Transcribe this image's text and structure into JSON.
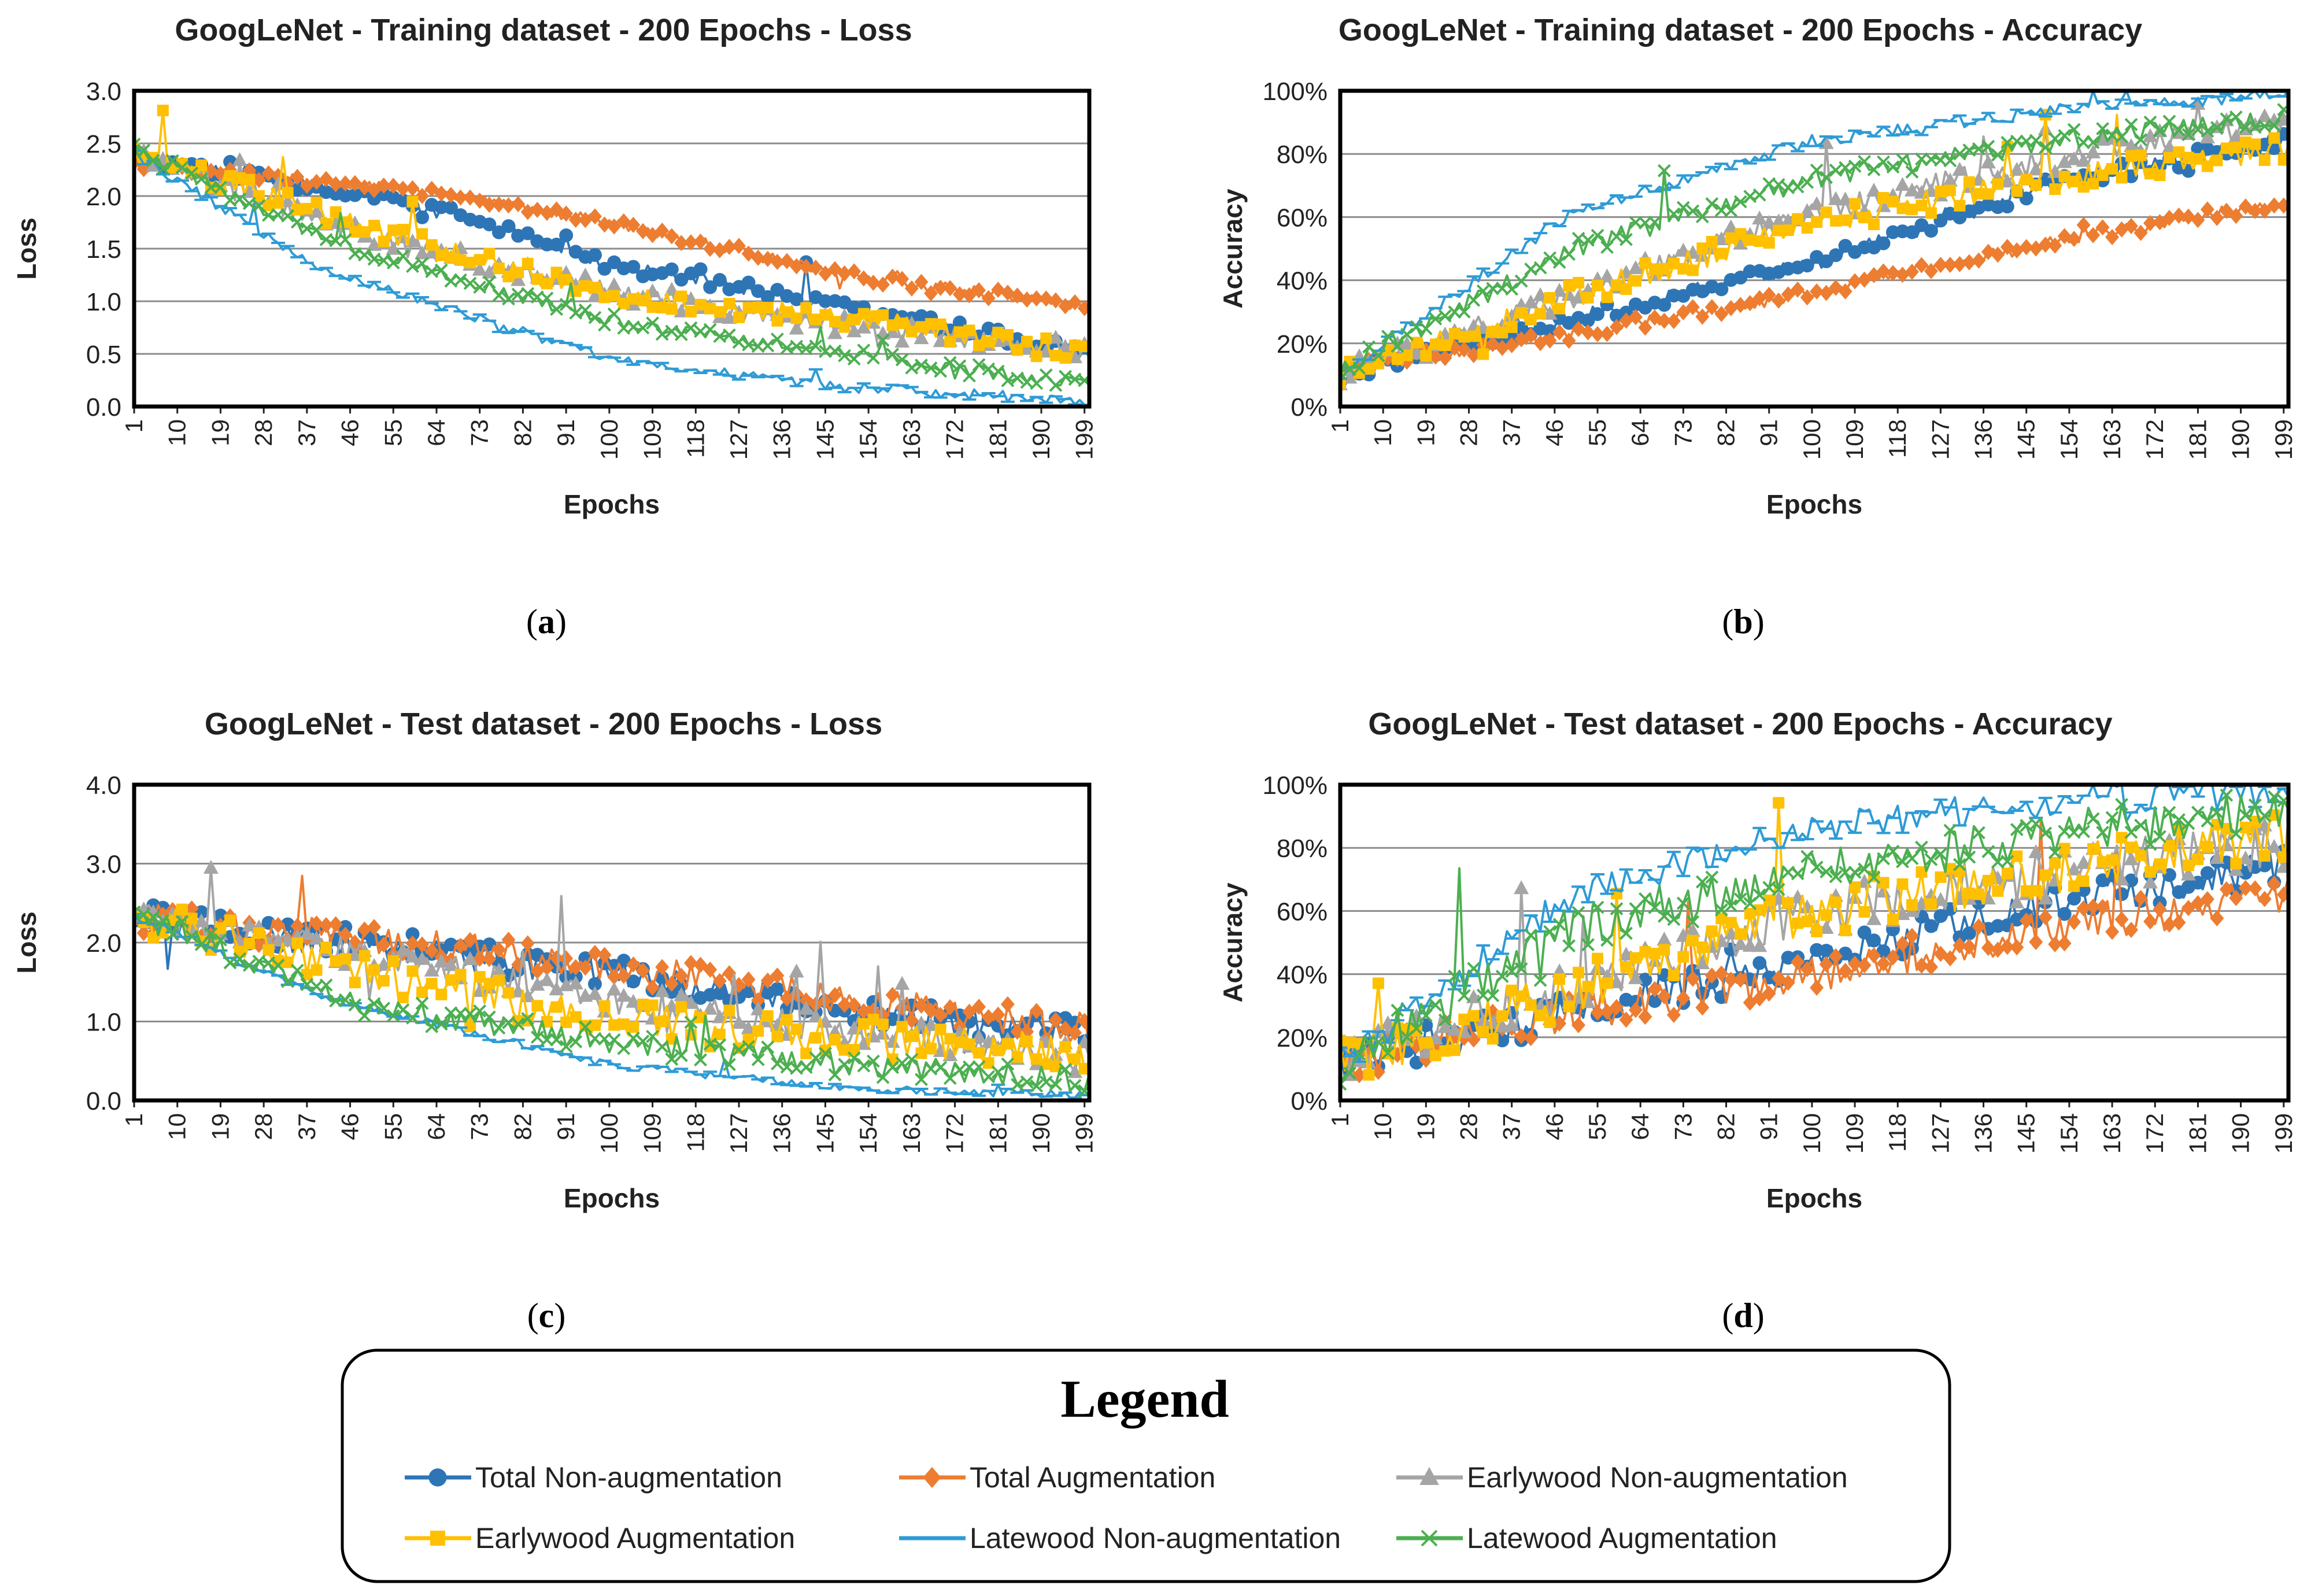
{
  "colors": {
    "total_non_aug": "#2E75B6",
    "total_aug": "#ED7D31",
    "early_non_aug": "#A5A5A5",
    "early_aug": "#FFC000",
    "late_non_aug": "#2E9BD6",
    "late_aug": "#4CAF50",
    "grid": "#8c8c8c"
  },
  "panels": {
    "a": {
      "letter": "a"
    },
    "b": {
      "letter": "b"
    },
    "c": {
      "letter": "c"
    },
    "d": {
      "letter": "d"
    }
  },
  "legend": {
    "title": "Legend",
    "items": [
      {
        "label": "Total Non-augmentation",
        "series": "total_non_aug",
        "marker": "circle"
      },
      {
        "label": "Total Augmentation",
        "series": "total_aug",
        "marker": "diamond"
      },
      {
        "label": "Earlywood Non-augmentation",
        "series": "early_non_aug",
        "marker": "triangle"
      },
      {
        "label": "Earlywood Augmentation",
        "series": "early_aug",
        "marker": "square"
      },
      {
        "label": "Latewood Non-augmentation",
        "series": "late_non_aug",
        "marker": "dash"
      },
      {
        "label": "Latewood Augmentation",
        "series": "late_aug",
        "marker": "x"
      }
    ]
  },
  "chart_data": [
    {
      "id": "a",
      "type": "line",
      "title": "GoogLeNet - Training dataset - 200 Epochs - Loss",
      "xlabel": "Epochs",
      "ylabel": "Loss",
      "xlim": [
        1,
        200
      ],
      "ylim": [
        0,
        3.0
      ],
      "yticks": [
        0.0,
        0.5,
        1.0,
        1.5,
        2.0,
        2.5,
        3.0
      ],
      "ytick_labels": [
        "0.0",
        "0.5",
        "1.0",
        "1.5",
        "2.0",
        "2.5",
        "3.0"
      ],
      "xticks": [
        1,
        10,
        19,
        28,
        37,
        46,
        55,
        64,
        73,
        82,
        91,
        100,
        109,
        118,
        127,
        136,
        145,
        154,
        163,
        172,
        181,
        190,
        199
      ],
      "xtick_labels": [
        "1",
        "10",
        "19",
        "28",
        "37",
        "46",
        "55",
        "64",
        "73",
        "82",
        "91",
        "100",
        "109",
        "118",
        "127",
        "136",
        "145",
        "154",
        "163",
        "172",
        "181",
        "190",
        "199"
      ],
      "grid": true,
      "series": [
        {
          "name": "Total Non-augmentation",
          "key": "total_non_aug",
          "anchors": [
            [
              1,
              2.35
            ],
            [
              60,
              1.95
            ],
            [
              100,
              1.35
            ],
            [
              150,
              0.95
            ],
            [
              200,
              0.5
            ]
          ],
          "noise": 0.06
        },
        {
          "name": "Total Augmentation",
          "key": "total_aug",
          "anchors": [
            [
              1,
              2.3
            ],
            [
              60,
              2.05
            ],
            [
              100,
              1.75
            ],
            [
              150,
              1.25
            ],
            [
              200,
              0.95
            ]
          ],
          "noise": 0.05
        },
        {
          "name": "Earlywood Non-augmentation",
          "key": "early_non_aug",
          "anchors": [
            [
              1,
              2.4
            ],
            [
              50,
              1.6
            ],
            [
              100,
              1.1
            ],
            [
              150,
              0.75
            ],
            [
              200,
              0.55
            ]
          ],
          "noise": 0.1
        },
        {
          "name": "Earlywood Augmentation",
          "key": "early_aug",
          "anchors": [
            [
              1,
              2.4
            ],
            [
              50,
              1.7
            ],
            [
              100,
              1.05
            ],
            [
              150,
              0.85
            ],
            [
              200,
              0.5
            ]
          ],
          "noise": 0.1
        },
        {
          "name": "Latewood Non-augmentation",
          "key": "late_non_aug",
          "anchors": [
            [
              1,
              2.4
            ],
            [
              40,
              1.3
            ],
            [
              100,
              0.45
            ],
            [
              150,
              0.18
            ],
            [
              200,
              0.05
            ]
          ],
          "noise": 0.05
        },
        {
          "name": "Latewood Augmentation",
          "key": "late_aug",
          "anchors": [
            [
              1,
              2.45
            ],
            [
              40,
              1.6
            ],
            [
              100,
              0.8
            ],
            [
              150,
              0.5
            ],
            [
              200,
              0.2
            ]
          ],
          "noise": 0.06
        }
      ]
    },
    {
      "id": "b",
      "type": "line",
      "title": "GoogLeNet - Training dataset - 200 Epochs - Accuracy",
      "xlabel": "Epochs",
      "ylabel": "Accuracy",
      "xlim": [
        1,
        200
      ],
      "ylim": [
        0,
        100
      ],
      "yticks": [
        0,
        20,
        40,
        60,
        80,
        100
      ],
      "ytick_labels": [
        "0%",
        "20%",
        "40%",
        "60%",
        "80%",
        "100%"
      ],
      "xticks": [
        1,
        10,
        19,
        28,
        37,
        46,
        55,
        64,
        73,
        82,
        91,
        100,
        109,
        118,
        127,
        136,
        145,
        154,
        163,
        172,
        181,
        190,
        199
      ],
      "xtick_labels": [
        "1",
        "10",
        "19",
        "28",
        "37",
        "46",
        "55",
        "64",
        "73",
        "82",
        "91",
        "100",
        "109",
        "118",
        "127",
        "136",
        "145",
        "154",
        "163",
        "172",
        "181",
        "190",
        "199"
      ],
      "grid": true,
      "series": [
        {
          "name": "Total Non-augmentation",
          "key": "total_non_aug",
          "anchors": [
            [
              1,
              10
            ],
            [
              50,
              28
            ],
            [
              100,
              45
            ],
            [
              150,
              70
            ],
            [
              200,
              85
            ]
          ],
          "noise": 2.5
        },
        {
          "name": "Total Augmentation",
          "key": "total_aug",
          "anchors": [
            [
              1,
              12
            ],
            [
              50,
              23
            ],
            [
              100,
              36
            ],
            [
              150,
              52
            ],
            [
              200,
              65
            ]
          ],
          "noise": 2
        },
        {
          "name": "Earlywood Non-augmentation",
          "key": "early_non_aug",
          "anchors": [
            [
              1,
              10
            ],
            [
              50,
              35
            ],
            [
              100,
              62
            ],
            [
              150,
              78
            ],
            [
              200,
              90
            ]
          ],
          "noise": 4
        },
        {
          "name": "Earlywood Augmentation",
          "key": "early_aug",
          "anchors": [
            [
              1,
              10
            ],
            [
              50,
              35
            ],
            [
              100,
              58
            ],
            [
              150,
              72
            ],
            [
              200,
              82
            ]
          ],
          "noise": 4
        },
        {
          "name": "Latewood Non-augmentation",
          "key": "late_non_aug",
          "anchors": [
            [
              1,
              10
            ],
            [
              50,
              62
            ],
            [
              100,
              84
            ],
            [
              150,
              94
            ],
            [
              200,
              99
            ]
          ],
          "noise": 2
        },
        {
          "name": "Latewood Augmentation",
          "key": "late_aug",
          "anchors": [
            [
              1,
              12
            ],
            [
              50,
              50
            ],
            [
              100,
              72
            ],
            [
              150,
              84
            ],
            [
              200,
              92
            ]
          ],
          "noise": 3
        }
      ]
    },
    {
      "id": "c",
      "type": "line",
      "title": "GoogLeNet - Test dataset - 200 Epochs - Loss",
      "xlabel": "Epochs",
      "ylabel": "Loss",
      "xlim": [
        1,
        200
      ],
      "ylim": [
        0,
        4.0
      ],
      "yticks": [
        0.0,
        1.0,
        2.0,
        3.0,
        4.0
      ],
      "ytick_labels": [
        "0.0",
        "1.0",
        "2.0",
        "3.0",
        "4.0"
      ],
      "xticks": [
        1,
        10,
        19,
        28,
        37,
        46,
        55,
        64,
        73,
        82,
        91,
        100,
        109,
        118,
        127,
        136,
        145,
        154,
        163,
        172,
        181,
        190,
        199
      ],
      "xtick_labels": [
        "1",
        "10",
        "19",
        "28",
        "37",
        "46",
        "55",
        "64",
        "73",
        "82",
        "91",
        "100",
        "109",
        "118",
        "127",
        "136",
        "145",
        "154",
        "163",
        "172",
        "181",
        "190",
        "199"
      ],
      "grid": true,
      "series": [
        {
          "name": "Total Non-augmentation",
          "key": "total_non_aug",
          "anchors": [
            [
              1,
              2.3
            ],
            [
              60,
              1.9
            ],
            [
              100,
              1.6
            ],
            [
              150,
              1.15
            ],
            [
              200,
              0.85
            ]
          ],
          "noise": 0.2
        },
        {
          "name": "Total Augmentation",
          "key": "total_aug",
          "anchors": [
            [
              1,
              2.3
            ],
            [
              60,
              2.0
            ],
            [
              100,
              1.7
            ],
            [
              150,
              1.3
            ],
            [
              200,
              0.9
            ]
          ],
          "noise": 0.2
        },
        {
          "name": "Earlywood Non-augmentation",
          "key": "early_non_aug",
          "anchors": [
            [
              1,
              2.35
            ],
            [
              60,
              1.7
            ],
            [
              100,
              1.3
            ],
            [
              150,
              0.9
            ],
            [
              200,
              0.55
            ]
          ],
          "noise": 0.2
        },
        {
          "name": "Earlywood Augmentation",
          "key": "early_aug",
          "anchors": [
            [
              1,
              2.35
            ],
            [
              60,
              1.5
            ],
            [
              100,
              1.0
            ],
            [
              150,
              0.8
            ],
            [
              200,
              0.55
            ]
          ],
          "noise": 0.25
        },
        {
          "name": "Latewood Non-augmentation",
          "key": "late_non_aug",
          "anchors": [
            [
              1,
              2.35
            ],
            [
              40,
              1.3
            ],
            [
              100,
              0.45
            ],
            [
              150,
              0.15
            ],
            [
              200,
              0.07
            ]
          ],
          "noise": 0.05
        },
        {
          "name": "Latewood Augmentation",
          "key": "late_aug",
          "anchors": [
            [
              1,
              2.35
            ],
            [
              50,
              1.2
            ],
            [
              100,
              0.75
            ],
            [
              150,
              0.45
            ],
            [
              200,
              0.25
            ]
          ],
          "noise": 0.15
        }
      ]
    },
    {
      "id": "d",
      "type": "line",
      "title": "GoogLeNet - Test dataset - 200 Epochs - Accuracy",
      "xlabel": "Epochs",
      "ylabel": "Accuracy",
      "xlim": [
        1,
        200
      ],
      "ylim": [
        0,
        100
      ],
      "yticks": [
        0,
        20,
        40,
        60,
        80,
        100
      ],
      "ytick_labels": [
        "0%",
        "20%",
        "40%",
        "60%",
        "80%",
        "100%"
      ],
      "xticks": [
        1,
        10,
        19,
        28,
        37,
        46,
        55,
        64,
        73,
        82,
        91,
        100,
        109,
        118,
        127,
        136,
        145,
        154,
        163,
        172,
        181,
        190,
        199
      ],
      "xtick_labels": [
        "1",
        "10",
        "19",
        "28",
        "37",
        "46",
        "55",
        "64",
        "73",
        "82",
        "91",
        "100",
        "109",
        "118",
        "127",
        "136",
        "145",
        "154",
        "163",
        "172",
        "181",
        "190",
        "199"
      ],
      "grid": true,
      "series": [
        {
          "name": "Total Non-augmentation",
          "key": "total_non_aug",
          "anchors": [
            [
              1,
              12
            ],
            [
              50,
              28
            ],
            [
              100,
              45
            ],
            [
              150,
              62
            ],
            [
              200,
              75
            ]
          ],
          "noise": 6
        },
        {
          "name": "Total Augmentation",
          "key": "total_aug",
          "anchors": [
            [
              1,
              12
            ],
            [
              50,
              28
            ],
            [
              100,
              40
            ],
            [
              150,
              55
            ],
            [
              200,
              65
            ]
          ],
          "noise": 6
        },
        {
          "name": "Earlywood Non-augmentation",
          "key": "early_non_aug",
          "anchors": [
            [
              1,
              12
            ],
            [
              50,
              35
            ],
            [
              100,
              60
            ],
            [
              150,
              72
            ],
            [
              200,
              82
            ]
          ],
          "noise": 8
        },
        {
          "name": "Earlywood Augmentation",
          "key": "early_aug",
          "anchors": [
            [
              1,
              12
            ],
            [
              50,
              35
            ],
            [
              100,
              60
            ],
            [
              150,
              72
            ],
            [
              200,
              85
            ]
          ],
          "noise": 8
        },
        {
          "name": "Latewood Non-augmentation",
          "key": "late_non_aug",
          "anchors": [
            [
              1,
              12
            ],
            [
              50,
              65
            ],
            [
              100,
              86
            ],
            [
              150,
              95
            ],
            [
              200,
              98
            ]
          ],
          "noise": 5
        },
        {
          "name": "Latewood Augmentation",
          "key": "late_aug",
          "anchors": [
            [
              1,
              12
            ],
            [
              50,
              55
            ],
            [
              100,
              72
            ],
            [
              150,
              85
            ],
            [
              200,
              92
            ]
          ],
          "noise": 7
        }
      ]
    }
  ]
}
